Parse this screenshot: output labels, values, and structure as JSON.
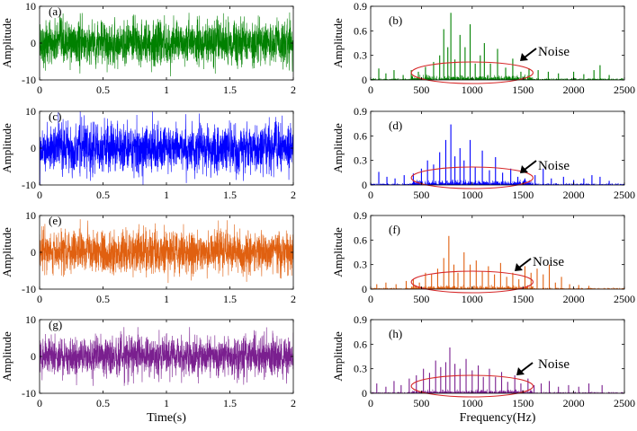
{
  "chart_data": [
    {
      "id": "a",
      "type": "line",
      "panel_label": "(a)",
      "ylabel": "Amplitude",
      "xlabel": "",
      "color": "#008000",
      "xlim": [
        0,
        2
      ],
      "ylim": [
        -10,
        10
      ],
      "xticks": [
        "0",
        "0.5",
        "1",
        "1.5",
        "2"
      ],
      "yticks": [
        "-10",
        "0",
        "10"
      ],
      "signal": {
        "kind": "noise",
        "samples": 2000,
        "std": 3.0,
        "peak": 10
      }
    },
    {
      "id": "b",
      "type": "line",
      "panel_label": "(b)",
      "ylabel": "Amplitude",
      "xlabel": "",
      "color": "#008000",
      "xlim": [
        0,
        2500
      ],
      "ylim": [
        0,
        0.9
      ],
      "xticks": [
        "0",
        "500",
        "1000",
        "1500",
        "2000",
        "2500"
      ],
      "yticks": [
        "0",
        "0.3",
        "0.6",
        "0.9"
      ],
      "spectrum": {
        "peaks": [
          [
            80,
            0.14
          ],
          [
            150,
            0.08
          ],
          [
            230,
            0.12
          ],
          [
            320,
            0.06
          ],
          [
            400,
            0.12
          ],
          [
            470,
            0.1
          ],
          [
            540,
            0.16
          ],
          [
            620,
            0.22
          ],
          [
            680,
            0.3
          ],
          [
            720,
            0.62
          ],
          [
            760,
            0.4
          ],
          [
            790,
            0.82
          ],
          [
            830,
            0.25
          ],
          [
            880,
            0.55
          ],
          [
            930,
            0.4
          ],
          [
            980,
            0.68
          ],
          [
            1030,
            0.2
          ],
          [
            1080,
            0.3
          ],
          [
            1120,
            0.45
          ],
          [
            1180,
            0.2
          ],
          [
            1250,
            0.38
          ],
          [
            1330,
            0.15
          ],
          [
            1400,
            0.26
          ],
          [
            1480,
            0.1
          ],
          [
            1560,
            0.14
          ],
          [
            1650,
            0.12
          ],
          [
            1750,
            0.1
          ],
          [
            1850,
            0.08
          ],
          [
            2000,
            0.1
          ],
          [
            2100,
            0.07
          ],
          [
            2200,
            0.12
          ],
          [
            2260,
            0.18
          ],
          [
            2350,
            0.06
          ]
        ],
        "noise_band": [
          400,
          1600
        ],
        "noise_level": 0.05
      },
      "annotation": {
        "text": "Noise"
      }
    },
    {
      "id": "c",
      "type": "line",
      "panel_label": "(c)",
      "ylabel": "Amplitude",
      "xlabel": "",
      "color": "#0000ff",
      "xlim": [
        0,
        2
      ],
      "ylim": [
        -10,
        10
      ],
      "xticks": [
        "0",
        "0.5",
        "1",
        "1.5",
        "2"
      ],
      "yticks": [
        "-10",
        "0",
        "10"
      ],
      "signal": {
        "kind": "noise",
        "samples": 2000,
        "std": 3.2,
        "peak": 10
      }
    },
    {
      "id": "d",
      "type": "line",
      "panel_label": "(d)",
      "ylabel": "Amplitude",
      "xlabel": "",
      "color": "#0000ff",
      "xlim": [
        0,
        2500
      ],
      "ylim": [
        0,
        0.9
      ],
      "xticks": [
        "0",
        "500",
        "1000",
        "1500",
        "2000",
        "2500"
      ],
      "yticks": [
        "0",
        "0.3",
        "0.6",
        "0.9"
      ],
      "spectrum": {
        "peaks": [
          [
            80,
            0.16
          ],
          [
            160,
            0.1
          ],
          [
            240,
            0.08
          ],
          [
            330,
            0.12
          ],
          [
            420,
            0.14
          ],
          [
            500,
            0.2
          ],
          [
            560,
            0.3
          ],
          [
            620,
            0.25
          ],
          [
            680,
            0.4
          ],
          [
            740,
            0.55
          ],
          [
            790,
            0.74
          ],
          [
            830,
            0.35
          ],
          [
            880,
            0.45
          ],
          [
            920,
            0.3
          ],
          [
            980,
            0.55
          ],
          [
            1030,
            0.22
          ],
          [
            1100,
            0.42
          ],
          [
            1170,
            0.18
          ],
          [
            1230,
            0.34
          ],
          [
            1300,
            0.15
          ],
          [
            1380,
            0.2
          ],
          [
            1450,
            0.1
          ],
          [
            1520,
            0.08
          ],
          [
            1620,
            0.12
          ],
          [
            1700,
            0.2
          ],
          [
            1780,
            0.08
          ],
          [
            1900,
            0.1
          ],
          [
            2000,
            0.06
          ],
          [
            2100,
            0.08
          ],
          [
            2180,
            0.12
          ],
          [
            2260,
            0.1
          ],
          [
            2350,
            0.05
          ]
        ],
        "noise_band": [
          400,
          1600
        ],
        "noise_level": 0.05
      },
      "annotation": {
        "text": "Noise"
      }
    },
    {
      "id": "e",
      "type": "line",
      "panel_label": "(e)",
      "ylabel": "Amplitude",
      "xlabel": "",
      "color": "#e06010",
      "xlim": [
        0,
        2
      ],
      "ylim": [
        -10,
        10
      ],
      "xticks": [
        "0",
        "0.5",
        "1",
        "1.5",
        "2"
      ],
      "yticks": [
        "-10",
        "0",
        "10"
      ],
      "signal": {
        "kind": "noise",
        "samples": 2000,
        "std": 2.8,
        "peak": 9
      }
    },
    {
      "id": "f",
      "type": "line",
      "panel_label": "(f)",
      "ylabel": "Amplitude",
      "xlabel": "",
      "color": "#e06010",
      "xlim": [
        0,
        2500
      ],
      "ylim": [
        0,
        0.9
      ],
      "xticks": [
        "0",
        "500",
        "1000",
        "1500",
        "2000",
        "2500"
      ],
      "yticks": [
        "0",
        "0.3",
        "0.6",
        "0.9"
      ],
      "spectrum": {
        "peaks": [
          [
            60,
            0.06
          ],
          [
            150,
            0.08
          ],
          [
            250,
            0.06
          ],
          [
            350,
            0.1
          ],
          [
            420,
            0.12
          ],
          [
            480,
            0.08
          ],
          [
            540,
            0.2
          ],
          [
            600,
            0.18
          ],
          [
            660,
            0.25
          ],
          [
            720,
            0.38
          ],
          [
            770,
            0.65
          ],
          [
            820,
            0.3
          ],
          [
            860,
            0.2
          ],
          [
            920,
            0.45
          ],
          [
            980,
            0.3
          ],
          [
            1040,
            0.35
          ],
          [
            1100,
            0.22
          ],
          [
            1160,
            0.28
          ],
          [
            1220,
            0.18
          ],
          [
            1280,
            0.32
          ],
          [
            1340,
            0.15
          ],
          [
            1400,
            0.2
          ],
          [
            1460,
            0.12
          ],
          [
            1520,
            0.28
          ],
          [
            1580,
            0.2
          ],
          [
            1640,
            0.25
          ],
          [
            1700,
            0.18
          ],
          [
            1760,
            0.3
          ],
          [
            1820,
            0.08
          ],
          [
            1880,
            0.15
          ],
          [
            1960,
            0.06
          ],
          [
            2050,
            0.05
          ],
          [
            2150,
            0.04
          ]
        ],
        "noise_band": [
          400,
          1600
        ],
        "noise_level": 0.04
      },
      "annotation": {
        "text": "Noise"
      }
    },
    {
      "id": "g",
      "type": "line",
      "panel_label": "(g)",
      "ylabel": "Amplitude",
      "xlabel": "Time(s)",
      "color": "#7a1f8f",
      "xlim": [
        0,
        2
      ],
      "ylim": [
        -10,
        10
      ],
      "xticks": [
        "0",
        "0.5",
        "1",
        "1.5",
        "2"
      ],
      "yticks": [
        "-10",
        "0",
        "10"
      ],
      "signal": {
        "kind": "noise",
        "samples": 2000,
        "std": 2.6,
        "peak": 8
      }
    },
    {
      "id": "h",
      "type": "line",
      "panel_label": "(h)",
      "ylabel": "Amplitude",
      "xlabel": "Frequency(Hz)",
      "color": "#7a1f8f",
      "xlim": [
        0,
        2500
      ],
      "ylim": [
        0,
        0.9
      ],
      "xticks": [
        "0",
        "500",
        "1000",
        "1500",
        "2000",
        "2500"
      ],
      "yticks": [
        "0",
        "0.3",
        "0.6",
        "0.9"
      ],
      "spectrum": {
        "peaks": [
          [
            60,
            0.12
          ],
          [
            150,
            0.08
          ],
          [
            230,
            0.15
          ],
          [
            300,
            0.1
          ],
          [
            380,
            0.18
          ],
          [
            450,
            0.22
          ],
          [
            520,
            0.3
          ],
          [
            580,
            0.25
          ],
          [
            640,
            0.4
          ],
          [
            690,
            0.32
          ],
          [
            740,
            0.38
          ],
          [
            780,
            0.56
          ],
          [
            830,
            0.36
          ],
          [
            880,
            0.3
          ],
          [
            940,
            0.42
          ],
          [
            1000,
            0.28
          ],
          [
            1060,
            0.34
          ],
          [
            1110,
            0.2
          ],
          [
            1170,
            0.3
          ],
          [
            1230,
            0.2
          ],
          [
            1290,
            0.26
          ],
          [
            1350,
            0.14
          ],
          [
            1420,
            0.22
          ],
          [
            1480,
            0.12
          ],
          [
            1550,
            0.18
          ],
          [
            1610,
            0.1
          ],
          [
            1680,
            0.12
          ],
          [
            1760,
            0.15
          ],
          [
            1850,
            0.08
          ],
          [
            1950,
            0.1
          ],
          [
            2050,
            0.08
          ],
          [
            2150,
            0.12
          ],
          [
            2280,
            0.1
          ]
        ],
        "noise_band": [
          400,
          1600
        ],
        "noise_level": 0.04
      },
      "annotation": {
        "text": "Noise"
      }
    }
  ]
}
